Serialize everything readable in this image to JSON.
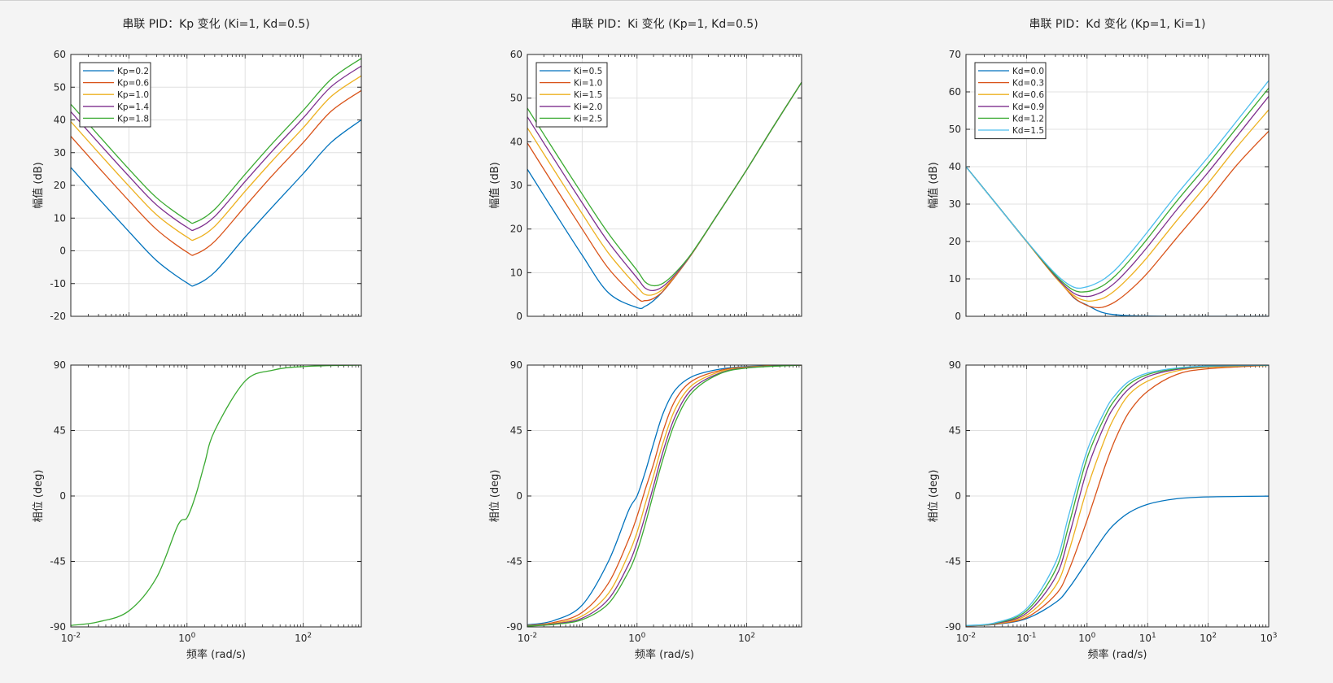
{
  "chart_data": [
    {
      "type": "line",
      "title": "串联 PID：Kp 变化 (Ki=1, Kd=0.5)",
      "xlabel": "",
      "ylabel": "幅值 (dB)",
      "xscale": "log",
      "xlim": [
        0.01,
        1000
      ],
      "ylim": [
        -20,
        60
      ],
      "yticks": [
        "-20",
        "-10",
        "0",
        "10",
        "20",
        "30",
        "40",
        "50",
        "60"
      ],
      "xticks": [],
      "grid": true,
      "legend": "top-left",
      "x": [
        0.01,
        0.03,
        0.1,
        0.3,
        1,
        1.4,
        3,
        10,
        30,
        100,
        300,
        1000
      ],
      "series": [
        {
          "name": "Kp=0.2",
          "color": "#0072BD",
          "values": [
            25.5,
            16.0,
            5.9,
            -3.0,
            -9.8,
            -10.4,
            -6.5,
            4.2,
            13.6,
            23.6,
            33.1,
            40.0
          ]
        },
        {
          "name": "Kp=0.6",
          "color": "#D95319",
          "values": [
            35.0,
            25.5,
            15.3,
            6.5,
            -0.4,
            -1.0,
            2.9,
            13.6,
            23.2,
            33.1,
            42.6,
            49.0
          ]
        },
        {
          "name": "Kp=1.0",
          "color": "#EDB120",
          "values": [
            39.5,
            30.0,
            19.8,
            11.0,
            4.2,
            3.6,
            7.5,
            18.2,
            27.7,
            37.6,
            47.1,
            53.5
          ]
        },
        {
          "name": "Kp=1.4",
          "color": "#7E2F8E",
          "values": [
            42.5,
            33.0,
            22.8,
            14.0,
            7.2,
            6.6,
            10.5,
            21.2,
            30.7,
            40.6,
            50.1,
            56.5
          ]
        },
        {
          "name": "Kp=1.8",
          "color": "#3BAA32",
          "values": [
            44.8,
            35.3,
            25.0,
            16.2,
            9.4,
            8.8,
            12.7,
            23.4,
            33.0,
            42.9,
            52.4,
            58.8
          ]
        }
      ]
    },
    {
      "type": "line",
      "title": "",
      "xlabel": "频率 (rad/s)",
      "ylabel": "相位 (deg)",
      "xscale": "log",
      "xlim": [
        0.01,
        1000
      ],
      "ylim": [
        -90,
        90
      ],
      "yticks": [
        "-90",
        "-45",
        "0",
        "45",
        "90"
      ],
      "xticks": [
        "10^-2",
        "10^0",
        "10^2"
      ],
      "grid": true,
      "x": [
        0.01,
        0.03,
        0.1,
        0.3,
        0.7,
        1,
        1.4,
        2,
        3,
        10,
        30,
        100,
        1000
      ],
      "series": [
        {
          "name": "",
          "color": "#3BAA32",
          "values": [
            -89,
            -86.5,
            -79,
            -56,
            -20,
            -15,
            0,
            22,
            45,
            79,
            86.5,
            89,
            90
          ]
        }
      ]
    },
    {
      "type": "line",
      "title": "串联 PID：Ki 变化 (Kp=1, Kd=0.5)",
      "xlabel": "",
      "ylabel": "幅值 (dB)",
      "xscale": "log",
      "xlim": [
        0.01,
        1000
      ],
      "ylim": [
        0,
        60
      ],
      "yticks": [
        "0",
        "10",
        "20",
        "30",
        "40",
        "50",
        "60"
      ],
      "xticks": [],
      "grid": true,
      "legend": "top-left",
      "x": [
        0.01,
        0.03,
        0.1,
        0.3,
        1,
        1.4,
        2,
        3,
        5,
        10,
        30,
        100,
        300,
        1000
      ],
      "series": [
        {
          "name": "Ki=0.5",
          "color": "#0072BD",
          "values": [
            33.7,
            24.2,
            14.0,
            5.4,
            2.0,
            2.3,
            3.6,
            5.8,
            9.2,
            14.3,
            23.5,
            33.6,
            43.3,
            53.6
          ]
        },
        {
          "name": "Ki=1.0",
          "color": "#D95319",
          "values": [
            39.7,
            30.2,
            20.0,
            11.0,
            4.2,
            3.6,
            4.1,
            5.8,
            9.2,
            14.3,
            23.5,
            33.6,
            43.3,
            53.6
          ]
        },
        {
          "name": "Ki=1.5",
          "color": "#EDB120",
          "values": [
            43.2,
            33.7,
            23.5,
            14.5,
            6.8,
            5.0,
            5.0,
            6.3,
            9.4,
            14.3,
            23.5,
            33.6,
            43.3,
            53.6
          ]
        },
        {
          "name": "Ki=2.0",
          "color": "#7E2F8E",
          "values": [
            45.7,
            36.2,
            26.0,
            17.0,
            8.8,
            6.5,
            5.9,
            6.9,
            9.6,
            14.4,
            23.5,
            33.6,
            43.3,
            53.6
          ]
        },
        {
          "name": "Ki=2.5",
          "color": "#3BAA32",
          "values": [
            47.7,
            38.2,
            28.0,
            19.0,
            10.5,
            7.9,
            7.0,
            7.6,
            10.0,
            14.5,
            23.5,
            33.6,
            43.3,
            53.6
          ]
        }
      ]
    },
    {
      "type": "line",
      "title": "",
      "xlabel": "频率 (rad/s)",
      "ylabel": "相位 (deg)",
      "xscale": "log",
      "xlim": [
        0.01,
        1000
      ],
      "ylim": [
        -90,
        90
      ],
      "yticks": [
        "-90",
        "-45",
        "0",
        "45",
        "90"
      ],
      "xticks": [
        "10^-2",
        "10^0",
        "10^2"
      ],
      "grid": true,
      "x": [
        0.01,
        0.03,
        0.1,
        0.3,
        0.7,
        1,
        1.4,
        2,
        3,
        5,
        10,
        30,
        100,
        1000
      ],
      "series": [
        {
          "name": "Ki=0.5",
          "color": "#0072BD",
          "values": [
            -88.6,
            -85.7,
            -75.0,
            -45.0,
            -10.0,
            0.0,
            16.0,
            36.0,
            57.0,
            73.0,
            82.0,
            87.0,
            89.0,
            90.0
          ]
        },
        {
          "name": "Ki=1.0",
          "color": "#D95319",
          "values": [
            -89.0,
            -87.0,
            -80.0,
            -60.0,
            -30.0,
            -14.0,
            4.0,
            22.0,
            45.0,
            66.0,
            79.0,
            86.0,
            88.7,
            90.0
          ]
        },
        {
          "name": "Ki=1.5",
          "color": "#EDB120",
          "values": [
            -89.2,
            -87.6,
            -82.5,
            -67.0,
            -40.0,
            -25.0,
            -6.0,
            14.0,
            37.0,
            60.0,
            76.0,
            85.0,
            88.5,
            90.0
          ]
        },
        {
          "name": "Ki=2.0",
          "color": "#7E2F8E",
          "values": [
            -89.4,
            -88.0,
            -84.0,
            -71.0,
            -47.0,
            -32.0,
            -14.0,
            7.0,
            31.0,
            55.0,
            73.5,
            84.0,
            88.2,
            90.0
          ]
        },
        {
          "name": "Ki=2.5",
          "color": "#3BAA32",
          "values": [
            -89.5,
            -88.3,
            -85.0,
            -74.0,
            -52.0,
            -38.0,
            -20.0,
            2.0,
            26.0,
            51.0,
            71.0,
            83.5,
            88.0,
            90.0
          ]
        }
      ]
    },
    {
      "type": "line",
      "title": "串联 PID：Kd 变化 (Kp=1, Ki=1)",
      "xlabel": "",
      "ylabel": "幅值 (dB)",
      "xscale": "log",
      "xlim": [
        0.01,
        1000
      ],
      "ylim": [
        0,
        70
      ],
      "yticks": [
        "0",
        "10",
        "20",
        "30",
        "40",
        "50",
        "60",
        "70"
      ],
      "xticks": [],
      "grid": true,
      "legend": "top-left",
      "x": [
        0.01,
        0.03,
        0.1,
        0.3,
        0.6,
        1,
        1.5,
        2,
        3,
        5,
        10,
        30,
        100,
        300,
        1000
      ],
      "series": [
        {
          "name": "Kd=0.0",
          "color": "#0072BD",
          "values": [
            40.0,
            30.5,
            20.0,
            11.0,
            5.0,
            3.0,
            1.5,
            0.8,
            0.4,
            0.15,
            0.04,
            0.0,
            0.0,
            0.0,
            0.0
          ]
        },
        {
          "name": "Kd=0.3",
          "color": "#D95319",
          "values": [
            40.0,
            30.5,
            20.0,
            10.6,
            5.1,
            2.9,
            2.3,
            2.6,
            4.0,
            6.8,
            11.6,
            20.9,
            30.9,
            40.5,
            49.5
          ]
        },
        {
          "name": "Kd=0.6",
          "color": "#EDB120",
          "values": [
            40.0,
            30.5,
            20.0,
            10.4,
            5.6,
            4.1,
            4.4,
            5.1,
            7.1,
            10.5,
            15.9,
            25.5,
            35.6,
            45.3,
            55.2
          ]
        },
        {
          "name": "Kd=0.9",
          "color": "#7E2F8E",
          "values": [
            40.0,
            30.5,
            20.1,
            10.7,
            6.2,
            5.3,
            6.0,
            7.0,
            9.2,
            12.9,
            18.6,
            28.4,
            38.5,
            48.2,
            58.8
          ]
        },
        {
          "name": "Kd=1.2",
          "color": "#3BAA32",
          "values": [
            40.0,
            30.5,
            20.1,
            11.0,
            7.0,
            6.6,
            7.5,
            8.6,
            11.0,
            14.9,
            20.8,
            30.7,
            40.8,
            50.5,
            61.0
          ]
        },
        {
          "name": "Kd=1.5",
          "color": "#4DBEEE",
          "values": [
            40.0,
            30.5,
            20.1,
            11.4,
            7.8,
            7.9,
            9.0,
            10.2,
            12.6,
            16.6,
            22.6,
            32.5,
            42.6,
            52.3,
            63.0
          ]
        }
      ]
    },
    {
      "type": "line",
      "title": "",
      "xlabel": "频率 (rad/s)",
      "ylabel": "相位 (deg)",
      "xscale": "log",
      "xlim": [
        0.01,
        1000
      ],
      "ylim": [
        -90,
        90
      ],
      "yticks": [
        "-90",
        "-45",
        "0",
        "45",
        "90"
      ],
      "xticks": [
        "10^-2",
        "10^-1",
        "10^0",
        "10^1",
        "10^2",
        "10^3"
      ],
      "grid": true,
      "x": [
        0.01,
        0.03,
        0.1,
        0.3,
        0.5,
        1,
        2,
        3,
        5,
        10,
        30,
        100,
        1000
      ],
      "series": [
        {
          "name": "Kd=0.0",
          "color": "#0072BD",
          "values": [
            -89.4,
            -88.3,
            -84.3,
            -73.3,
            -63.4,
            -45.0,
            -26.6,
            -18.4,
            -11.3,
            -5.7,
            -1.9,
            -0.6,
            -0.1
          ]
        },
        {
          "name": "Kd=0.3",
          "color": "#D95319",
          "values": [
            -89.4,
            -88.1,
            -83.5,
            -68.0,
            -51.0,
            -16.7,
            21.0,
            40.0,
            58.0,
            72.0,
            83.5,
            87.5,
            89.8
          ]
        },
        {
          "name": "Kd=0.6",
          "color": "#EDB120",
          "values": [
            -89.3,
            -87.9,
            -82.0,
            -62.0,
            -38.0,
            5.0,
            40.0,
            56.0,
            70.0,
            79.0,
            86.0,
            88.5,
            89.8
          ]
        },
        {
          "name": "Kd=0.9",
          "color": "#7E2F8E",
          "values": [
            -89.2,
            -87.7,
            -80.5,
            -56.0,
            -28.0,
            18.0,
            50.0,
            63.0,
            74.0,
            82.0,
            87.0,
            89.0,
            89.9
          ]
        },
        {
          "name": "Kd=1.2",
          "color": "#3BAA32",
          "values": [
            -89.1,
            -87.5,
            -79.0,
            -51.0,
            -20.0,
            26.0,
            55.0,
            67.0,
            77.0,
            83.5,
            87.5,
            89.2,
            89.9
          ]
        },
        {
          "name": "Kd=1.5",
          "color": "#4DBEEE",
          "values": [
            -89.0,
            -87.2,
            -77.5,
            -46.0,
            -13.0,
            31.0,
            59.0,
            70.0,
            79.0,
            84.5,
            88.0,
            89.4,
            89.9
          ]
        }
      ]
    }
  ]
}
